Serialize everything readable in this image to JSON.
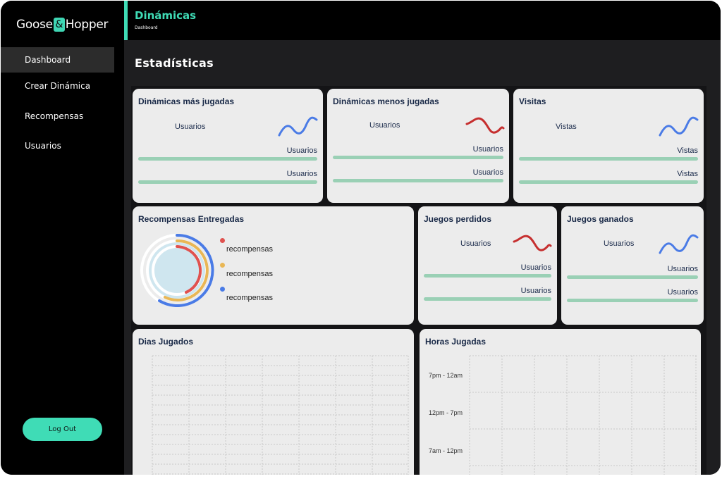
{
  "brand": {
    "left": "Goose",
    "amp": "&",
    "right": "Hopper"
  },
  "sidebar": {
    "items": [
      {
        "label": "Dashboard",
        "active": true
      },
      {
        "label": "Crear Dinámica"
      },
      {
        "label": "Recompensas"
      },
      {
        "label": "Usuarios"
      }
    ],
    "logout_label": "Log Out"
  },
  "header": {
    "title": "Dinámicas",
    "subtitle": "Dashboard"
  },
  "main": {
    "heading": "Estadísticas"
  },
  "cards": {
    "mas_jugadas": {
      "title": "Dinámicas más jugadas",
      "center_label": "Usuarios",
      "row1_label": "Usuarios",
      "row2_label": "Usuarios",
      "trend": "up"
    },
    "menos_jugadas": {
      "title": "Dinámicas menos jugadas",
      "center_label": "Usuarios",
      "row1_label": "Usuarios",
      "row2_label": "Usuarios",
      "trend": "down"
    },
    "visitas": {
      "title": "Visitas",
      "center_label": "Vistas",
      "row1_label": "Vistas",
      "row2_label": "Vistas",
      "trend": "up"
    },
    "recompensas": {
      "title": "Recompensas Entregadas",
      "legend": [
        {
          "label": "recompensas",
          "color": "#e0524f"
        },
        {
          "label": "recompensas",
          "color": "#e9b755"
        },
        {
          "label": "recompensas",
          "color": "#4a7be6"
        }
      ]
    },
    "juegos_perdidos": {
      "title": "Juegos perdidos",
      "center_label": "Usuarios",
      "row1_label": "Usuarios",
      "row2_label": "Usuarios",
      "trend": "down"
    },
    "juegos_ganados": {
      "title": "Juegos ganados",
      "center_label": "Usuarios",
      "row1_label": "Usuarios",
      "row2_label": "Usuarios",
      "trend": "up"
    },
    "dias_jugados": {
      "title": "Dias Jugados"
    },
    "horas_jugadas": {
      "title": "Horas Jugadas",
      "y_labels": [
        "7pm - 12am",
        "12pm - 7pm",
        "7am - 12pm"
      ]
    }
  },
  "colors": {
    "accent": "#3fdcb6",
    "trend_up": "#4a7be6",
    "trend_down": "#c62f2f",
    "bar": "#9ad0b5"
  }
}
